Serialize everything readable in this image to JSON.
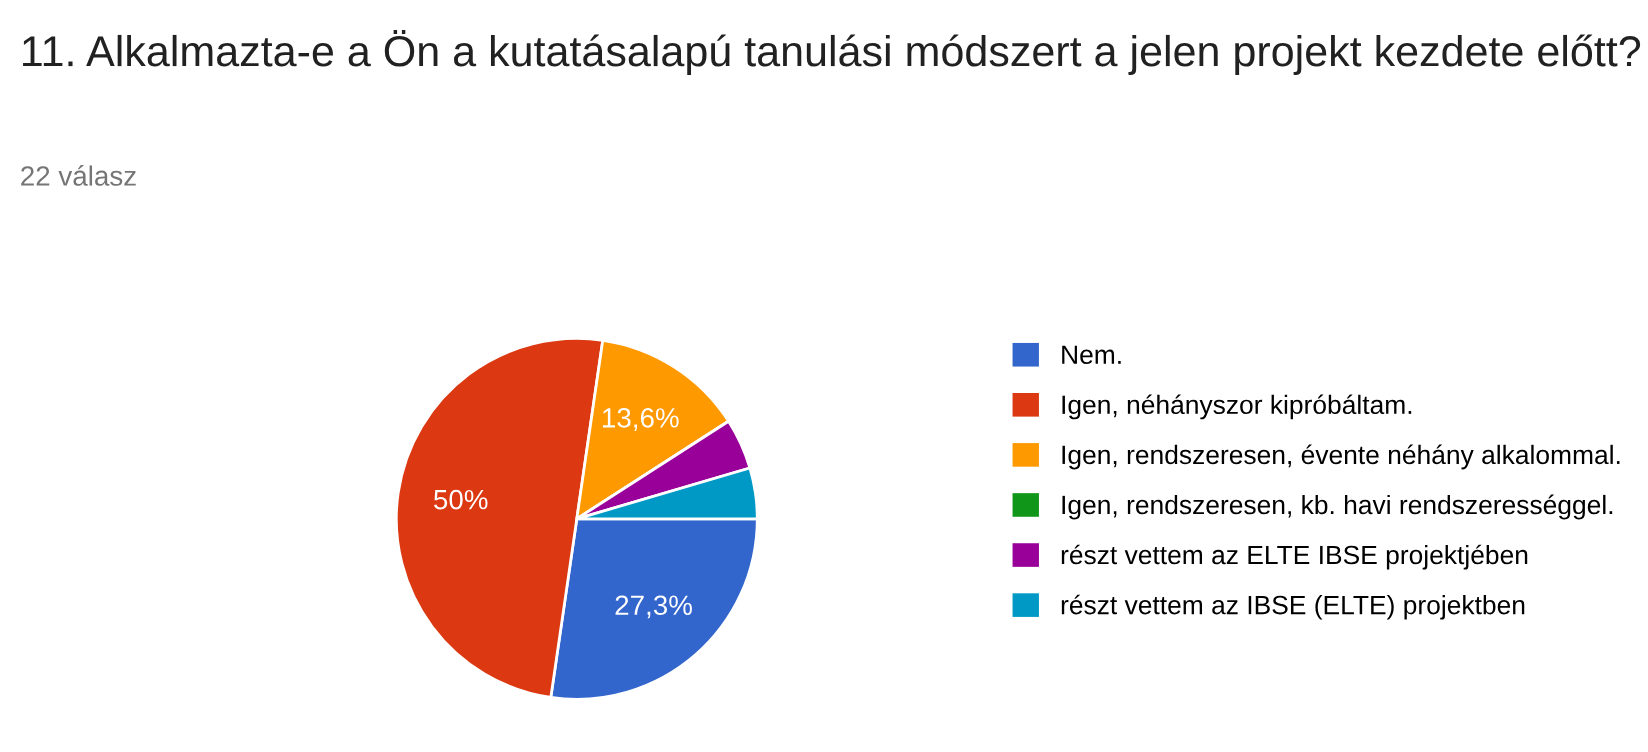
{
  "chart_data": {
    "type": "pie",
    "title": "11. Alkalmazta-e a Ön a kutatásalapú tanulási módszert a jelen projekt kezdete előtt?",
    "subtitle": "22 válasz",
    "categories": [
      "Nem.",
      "Igen, néhányszor kipróbáltam.",
      "Igen, rendszeresen, évente néhány alkalommal.",
      "Igen, rendszeresen, kb. havi rendszerességgel.",
      "részt vettem az ELTE IBSE projektjében",
      "részt vettem az IBSE (ELTE) projektben"
    ],
    "values": [
      27.3,
      50,
      13.6,
      0,
      4.55,
      4.55
    ],
    "colors": [
      "#3366cc",
      "#dc3912",
      "#ff9900",
      "#109618",
      "#990099",
      "#0099c6"
    ],
    "value_labels": [
      "27,3%",
      "50%",
      "13,6%",
      null,
      null,
      null
    ],
    "legend": "right"
  }
}
